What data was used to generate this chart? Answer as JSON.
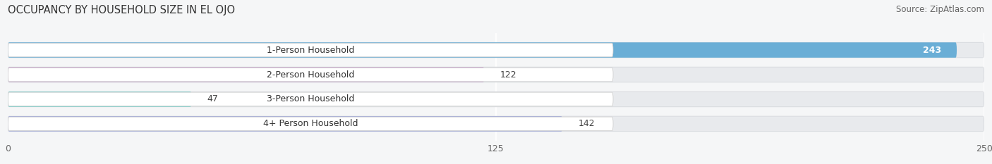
{
  "title": "OCCUPANCY BY HOUSEHOLD SIZE IN EL OJO",
  "source": "Source: ZipAtlas.com",
  "categories": [
    "1-Person Household",
    "2-Person Household",
    "3-Person Household",
    "4+ Person Household"
  ],
  "values": [
    243,
    122,
    47,
    142
  ],
  "bar_colors": [
    "#6aaed6",
    "#c4a0c8",
    "#7ececa",
    "#a0a8d8"
  ],
  "xlim": [
    0,
    250
  ],
  "xticks": [
    0,
    125,
    250
  ],
  "bar_height": 0.62,
  "background_color": "#f5f6f7",
  "bar_background_color": "#e8eaed",
  "label_box_color": "#ffffff",
  "title_fontsize": 10.5,
  "label_fontsize": 9,
  "value_fontsize": 9,
  "source_fontsize": 8.5
}
